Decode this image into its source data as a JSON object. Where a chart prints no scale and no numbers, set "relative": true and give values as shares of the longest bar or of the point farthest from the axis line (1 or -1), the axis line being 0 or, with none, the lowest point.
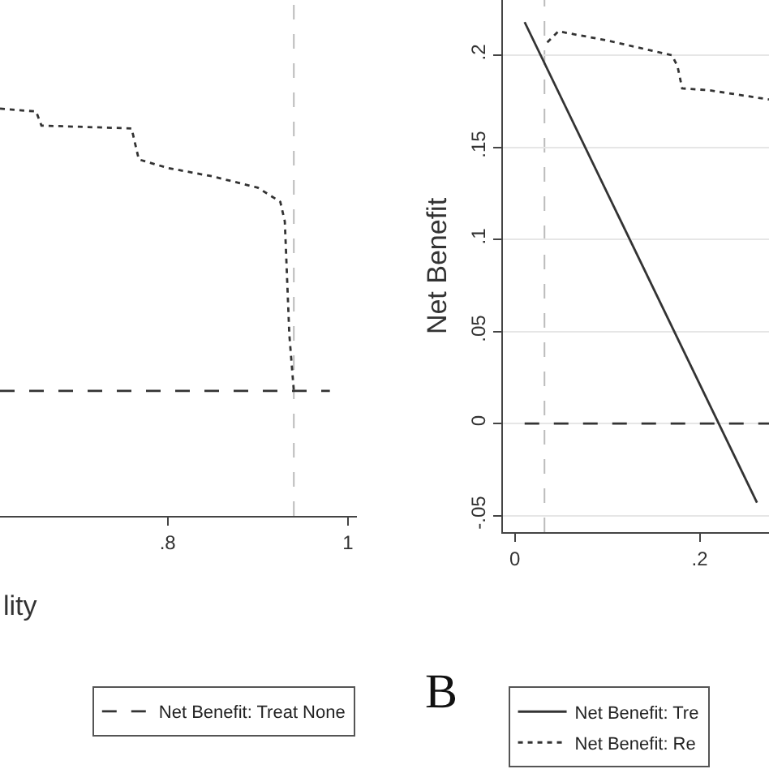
{
  "chart_data": [
    {
      "type": "line",
      "relative": true,
      "xlabel": "lity",
      "xlim": [
        0.614,
        1.01
      ],
      "xticks": [
        {
          "value": 0.8,
          "label": ".8"
        },
        1
      ],
      "tick_labels": "x",
      "legend": "bottom",
      "series": [
        {
          "color": "#333333",
          "line_style": "dotted",
          "x": [
            0.614,
            0.654,
            0.66,
            0.76,
            0.768,
            0.8,
            0.85,
            0.9,
            0.925,
            0.93,
            0.935,
            0.94
          ],
          "values": [
            1,
            0.99,
            0.94,
            0.93,
            0.82,
            0.79,
            0.76,
            0.72,
            0.67,
            0.6,
            0.2,
            0
          ]
        },
        {
          "name": "Net Benefit: Treat None",
          "color": "#333333",
          "line_style": "dashed",
          "x": [
            0.614,
            0.98
          ],
          "values": [
            0,
            0
          ]
        }
      ],
      "ref_lines": [
        {
          "axis": "x",
          "value": 0.94,
          "color": "#bbbbbb",
          "line_style": "dashed"
        }
      ]
    },
    {
      "type": "line",
      "ylabel": "Net Benefit",
      "annotations": [
        "B"
      ],
      "xlim": [
        -0.013,
        0.275
      ],
      "xticks": [
        0,
        {
          "value": 0.2,
          "label": ".2"
        }
      ],
      "ylim": [
        -0.059,
        0.23
      ],
      "yticks": [
        {
          "value": -0.05,
          "label": "-.05"
        },
        0,
        {
          "value": 0.05,
          "label": ".05"
        },
        {
          "value": 0.1,
          "label": ".1"
        },
        {
          "value": 0.15,
          "label": ".15"
        },
        {
          "value": 0.2,
          "label": ".2"
        }
      ],
      "grid": "y",
      "legend": "bottom",
      "series": [
        {
          "name": "Net Benefit: Tre",
          "color": "#333333",
          "line_style": "solid",
          "x": [
            0.0105,
            0.262
          ],
          "values": [
            0.218,
            -0.043
          ]
        },
        {
          "name": "Net Benefit: Re",
          "color": "#333333",
          "line_style": "dotted",
          "x": [
            0.035,
            0.047,
            0.1,
            0.17,
            0.176,
            0.181,
            0.21,
            0.275
          ],
          "values": [
            0.207,
            0.213,
            0.208,
            0.2,
            0.194,
            0.182,
            0.181,
            0.176
          ]
        },
        {
          "color": "#333333",
          "line_style": "dashed",
          "x": [
            0.0105,
            0.275
          ],
          "values": [
            0,
            0
          ]
        }
      ],
      "ref_lines": [
        {
          "axis": "x",
          "value": 0.032,
          "color": "#bbbbbb",
          "line_style": "dashed"
        }
      ]
    }
  ]
}
